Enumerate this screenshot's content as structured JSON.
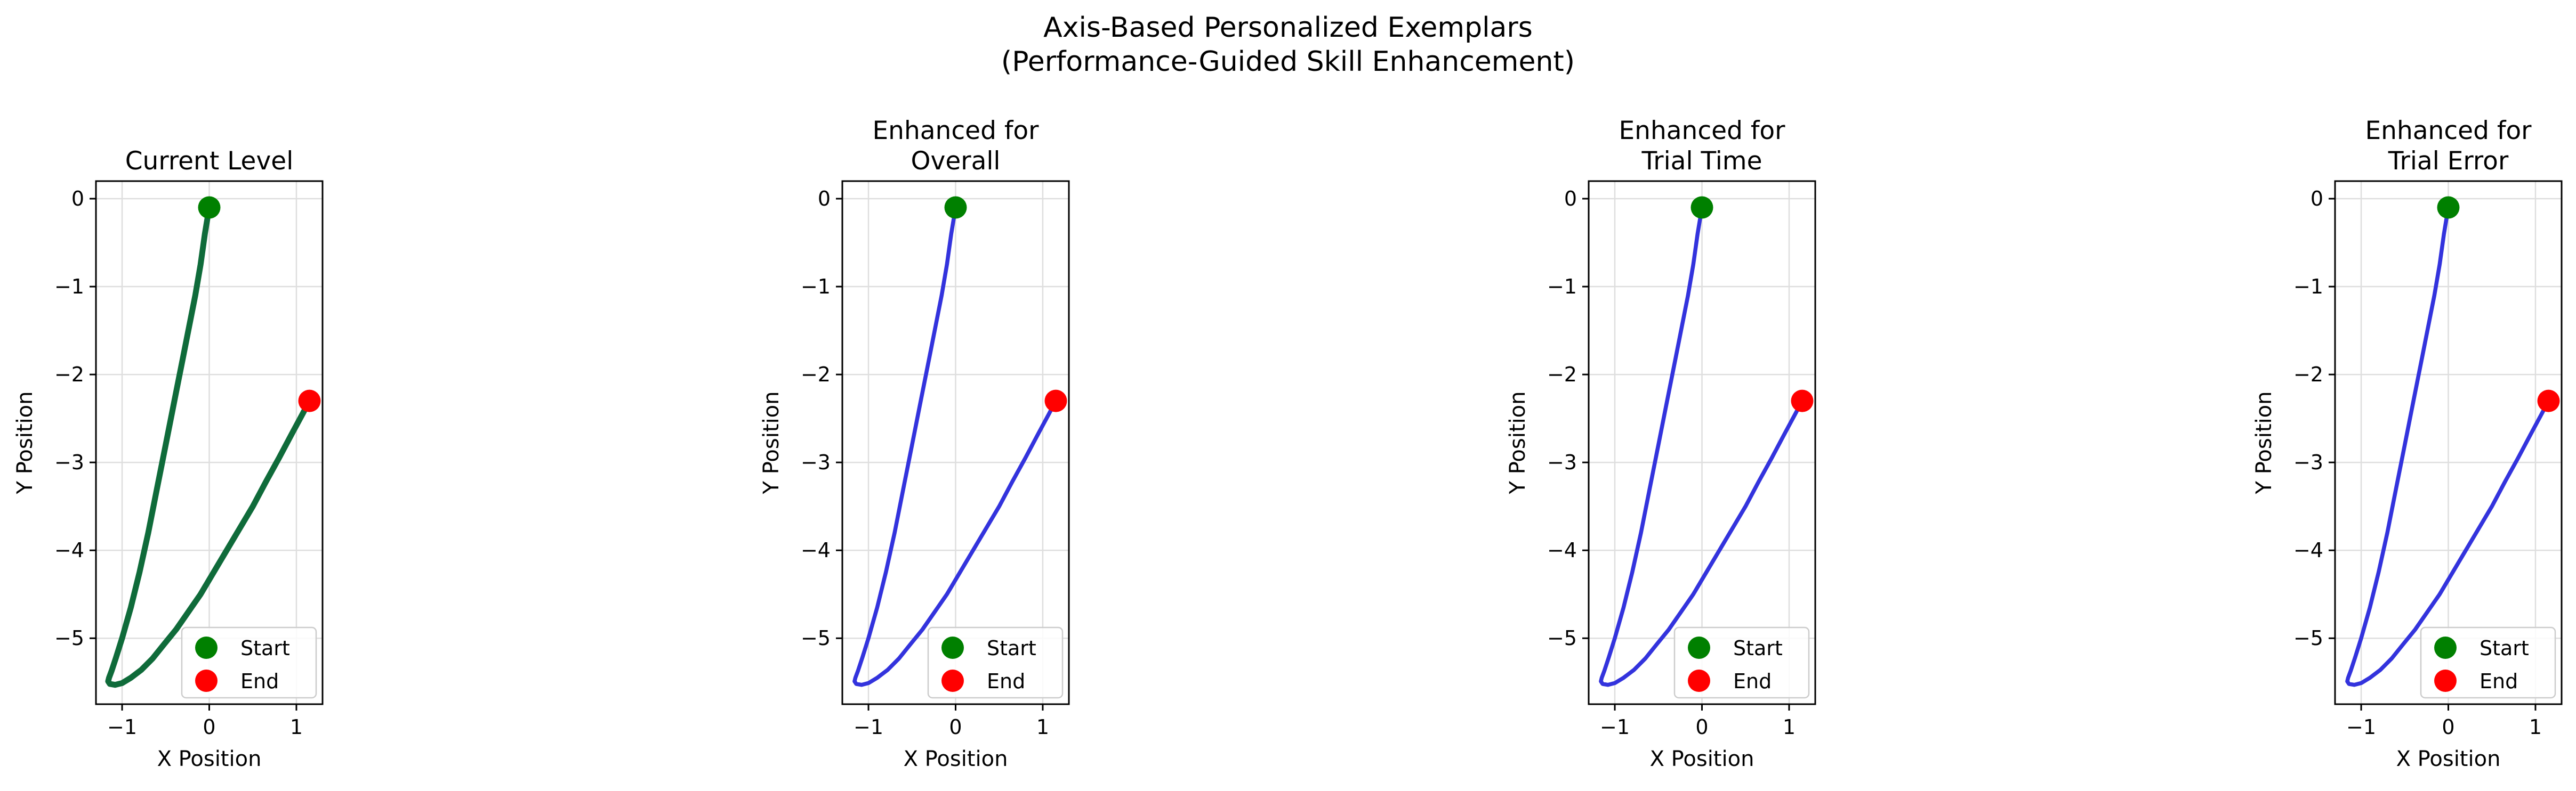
{
  "figure": {
    "suptitle_line1": "Axis-Based Personalized Exemplars",
    "suptitle_line2": "(Performance-Guided Skill Enhancement)"
  },
  "chart_data": [
    {
      "type": "line",
      "title": "Current Level",
      "xlabel": "X Position",
      "ylabel": "Y Position",
      "xlim": [
        -1.3,
        1.3
      ],
      "ylim": [
        -5.75,
        0.2
      ],
      "xticks": [
        -1,
        0,
        1
      ],
      "yticks": [
        0,
        -1,
        -2,
        -3,
        -4,
        -5
      ],
      "xtick_labels": [
        "−1",
        "0",
        "1"
      ],
      "ytick_labels": [
        "0",
        "−1",
        "−2",
        "−3",
        "−4",
        "−5"
      ],
      "grid": true,
      "line_color": "#0f6b3a",
      "line_style": "thick",
      "x": [
        0,
        -0.05,
        -0.1,
        -0.16,
        -0.23,
        -0.3,
        -0.4,
        -0.5,
        -0.6,
        -0.7,
        -0.8,
        -0.9,
        -1.0,
        -1.07,
        -1.12,
        -1.15,
        -1.16,
        -1.14,
        -1.08,
        -1.0,
        -0.9,
        -0.78,
        -0.65,
        -0.52,
        -0.38,
        -0.24,
        -0.1,
        0.05,
        0.2,
        0.35,
        0.5,
        0.65,
        0.8,
        0.95,
        1.07,
        1.15
      ],
      "y": [
        -0.1,
        -0.4,
        -0.75,
        -1.1,
        -1.45,
        -1.8,
        -2.3,
        -2.8,
        -3.3,
        -3.8,
        -4.25,
        -4.65,
        -5.0,
        -5.22,
        -5.37,
        -5.45,
        -5.49,
        -5.52,
        -5.53,
        -5.51,
        -5.45,
        -5.36,
        -5.23,
        -5.07,
        -4.9,
        -4.7,
        -4.5,
        -4.25,
        -4.0,
        -3.75,
        -3.5,
        -3.22,
        -2.95,
        -2.67,
        -2.45,
        -2.3
      ],
      "markers": [
        {
          "name": "Start",
          "x": 0,
          "y": -0.1,
          "color": "#008000"
        },
        {
          "name": "End",
          "x": 1.15,
          "y": -2.3,
          "color": "#ff0000"
        }
      ],
      "legend": {
        "placement": "lower right",
        "entries": [
          "Start",
          "End"
        ]
      }
    },
    {
      "type": "line",
      "title": "Enhanced for\nOverall",
      "title_lines": [
        "Enhanced for",
        "Overall"
      ],
      "xlabel": "X Position",
      "ylabel": "Y Position",
      "xlim": [
        -1.3,
        1.3
      ],
      "ylim": [
        -5.75,
        0.2
      ],
      "xticks": [
        -1,
        0,
        1
      ],
      "yticks": [
        0,
        -1,
        -2,
        -3,
        -4,
        -5
      ],
      "xtick_labels": [
        "−1",
        "0",
        "1"
      ],
      "ytick_labels": [
        "0",
        "−1",
        "−2",
        "−3",
        "−4",
        "−5"
      ],
      "grid": true,
      "line_color": "#3333dd",
      "line_style": "normal",
      "x": [
        0,
        -0.05,
        -0.1,
        -0.16,
        -0.23,
        -0.3,
        -0.4,
        -0.5,
        -0.6,
        -0.7,
        -0.8,
        -0.9,
        -1.0,
        -1.07,
        -1.12,
        -1.15,
        -1.16,
        -1.14,
        -1.08,
        -1.0,
        -0.9,
        -0.78,
        -0.65,
        -0.52,
        -0.38,
        -0.24,
        -0.1,
        0.05,
        0.2,
        0.35,
        0.5,
        0.65,
        0.8,
        0.95,
        1.07,
        1.15
      ],
      "y": [
        -0.1,
        -0.4,
        -0.75,
        -1.1,
        -1.45,
        -1.8,
        -2.3,
        -2.8,
        -3.3,
        -3.8,
        -4.25,
        -4.65,
        -5.0,
        -5.22,
        -5.37,
        -5.45,
        -5.49,
        -5.52,
        -5.53,
        -5.51,
        -5.45,
        -5.36,
        -5.23,
        -5.07,
        -4.9,
        -4.7,
        -4.5,
        -4.25,
        -4.0,
        -3.75,
        -3.5,
        -3.22,
        -2.95,
        -2.67,
        -2.45,
        -2.3
      ],
      "markers": [
        {
          "name": "Start",
          "x": 0,
          "y": -0.1,
          "color": "#008000"
        },
        {
          "name": "End",
          "x": 1.15,
          "y": -2.3,
          "color": "#ff0000"
        }
      ],
      "legend": {
        "placement": "lower right",
        "entries": [
          "Start",
          "End"
        ]
      }
    },
    {
      "type": "line",
      "title": "Enhanced for\nTrial Time",
      "title_lines": [
        "Enhanced for",
        "Trial Time"
      ],
      "xlabel": "X Position",
      "ylabel": "Y Position",
      "xlim": [
        -1.3,
        1.3
      ],
      "ylim": [
        -5.75,
        0.2
      ],
      "xticks": [
        -1,
        0,
        1
      ],
      "yticks": [
        0,
        -1,
        -2,
        -3,
        -4,
        -5
      ],
      "xtick_labels": [
        "−1",
        "0",
        "1"
      ],
      "ytick_labels": [
        "0",
        "−1",
        "−2",
        "−3",
        "−4",
        "−5"
      ],
      "grid": true,
      "line_color": "#3333dd",
      "line_style": "normal",
      "x": [
        0,
        -0.05,
        -0.1,
        -0.16,
        -0.23,
        -0.3,
        -0.4,
        -0.5,
        -0.6,
        -0.7,
        -0.8,
        -0.9,
        -1.0,
        -1.07,
        -1.12,
        -1.15,
        -1.16,
        -1.14,
        -1.08,
        -1.0,
        -0.9,
        -0.78,
        -0.65,
        -0.52,
        -0.38,
        -0.24,
        -0.1,
        0.05,
        0.2,
        0.35,
        0.5,
        0.65,
        0.8,
        0.95,
        1.07,
        1.15
      ],
      "y": [
        -0.1,
        -0.4,
        -0.75,
        -1.1,
        -1.45,
        -1.8,
        -2.3,
        -2.8,
        -3.3,
        -3.8,
        -4.25,
        -4.65,
        -5.0,
        -5.22,
        -5.37,
        -5.45,
        -5.49,
        -5.52,
        -5.53,
        -5.51,
        -5.45,
        -5.36,
        -5.23,
        -5.07,
        -4.9,
        -4.7,
        -4.5,
        -4.25,
        -4.0,
        -3.75,
        -3.5,
        -3.22,
        -2.95,
        -2.67,
        -2.45,
        -2.3
      ],
      "markers": [
        {
          "name": "Start",
          "x": 0,
          "y": -0.1,
          "color": "#008000"
        },
        {
          "name": "End",
          "x": 1.15,
          "y": -2.3,
          "color": "#ff0000"
        }
      ],
      "legend": {
        "placement": "lower right",
        "entries": [
          "Start",
          "End"
        ]
      }
    },
    {
      "type": "line",
      "title": "Enhanced for\nTrial Error",
      "title_lines": [
        "Enhanced for",
        "Trial Error"
      ],
      "xlabel": "X Position",
      "ylabel": "Y Position",
      "xlim": [
        -1.3,
        1.3
      ],
      "ylim": [
        -5.75,
        0.2
      ],
      "xticks": [
        -1,
        0,
        1
      ],
      "yticks": [
        0,
        -1,
        -2,
        -3,
        -4,
        -5
      ],
      "xtick_labels": [
        "−1",
        "0",
        "1"
      ],
      "ytick_labels": [
        "0",
        "−1",
        "−2",
        "−3",
        "−4",
        "−5"
      ],
      "grid": true,
      "line_color": "#3333dd",
      "line_style": "normal",
      "x": [
        0,
        -0.05,
        -0.1,
        -0.16,
        -0.23,
        -0.3,
        -0.4,
        -0.5,
        -0.6,
        -0.7,
        -0.8,
        -0.9,
        -1.0,
        -1.07,
        -1.12,
        -1.15,
        -1.16,
        -1.14,
        -1.08,
        -1.0,
        -0.9,
        -0.78,
        -0.65,
        -0.52,
        -0.38,
        -0.24,
        -0.1,
        0.05,
        0.2,
        0.35,
        0.5,
        0.65,
        0.8,
        0.95,
        1.07,
        1.15
      ],
      "y": [
        -0.1,
        -0.4,
        -0.75,
        -1.1,
        -1.45,
        -1.8,
        -2.3,
        -2.8,
        -3.3,
        -3.8,
        -4.25,
        -4.65,
        -5.0,
        -5.22,
        -5.37,
        -5.45,
        -5.49,
        -5.52,
        -5.53,
        -5.51,
        -5.45,
        -5.36,
        -5.23,
        -5.07,
        -4.9,
        -4.7,
        -4.5,
        -4.25,
        -4.0,
        -3.75,
        -3.5,
        -3.22,
        -2.95,
        -2.67,
        -2.45,
        -2.3
      ],
      "markers": [
        {
          "name": "Start",
          "x": 0,
          "y": -0.1,
          "color": "#008000"
        },
        {
          "name": "End",
          "x": 1.15,
          "y": -2.3,
          "color": "#ff0000"
        }
      ],
      "legend": {
        "placement": "lower right",
        "entries": [
          "Start",
          "End"
        ]
      }
    }
  ]
}
